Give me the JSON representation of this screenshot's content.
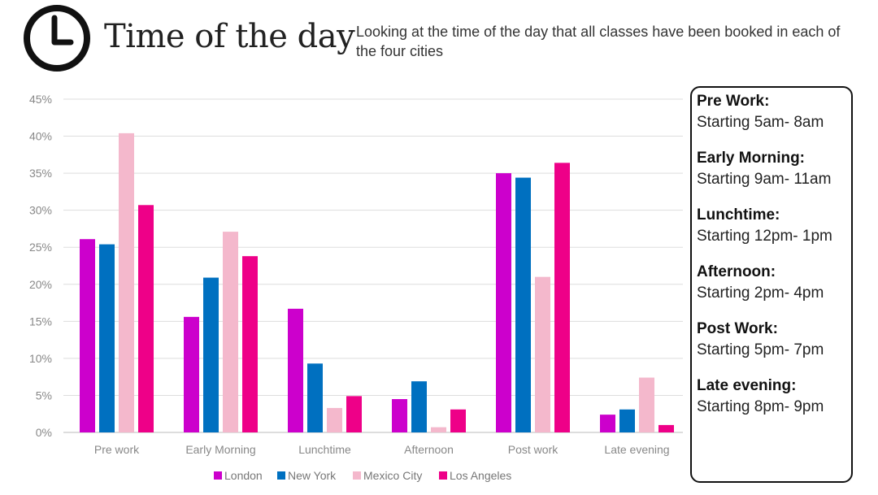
{
  "header": {
    "title": "Time of the day",
    "subtitle": "Looking at the time of the day that all classes have been booked in each of the four cities"
  },
  "chart_data": {
    "type": "bar",
    "categories": [
      "Pre work",
      "Early Morning",
      "Lunchtime",
      "Afternoon",
      "Post work",
      "Late evening"
    ],
    "series": [
      {
        "name": "London",
        "color": "#cc00cc",
        "values": [
          26.1,
          15.6,
          16.7,
          4.5,
          35.0,
          2.4
        ]
      },
      {
        "name": "New York",
        "color": "#0070c0",
        "values": [
          25.4,
          20.9,
          9.3,
          6.9,
          34.4,
          3.1
        ]
      },
      {
        "name": "Mexico City",
        "color": "#f4b8cc",
        "values": [
          40.4,
          27.1,
          3.3,
          0.7,
          21.0,
          7.4
        ]
      },
      {
        "name": "Los Angeles",
        "color": "#ee0088",
        "values": [
          30.7,
          23.8,
          4.9,
          3.1,
          36.4,
          1.0
        ]
      }
    ],
    "ylim": [
      0,
      45
    ],
    "yticks": [
      "0%",
      "5%",
      "10%",
      "15%",
      "20%",
      "25%",
      "30%",
      "35%",
      "40%",
      "45%"
    ],
    "grid": true,
    "legend": "bottom"
  },
  "sidebar": {
    "periods": [
      {
        "name": "Pre Work:",
        "time": "Starting 5am- 8am"
      },
      {
        "name": "Early Morning:",
        "time": "Starting 9am- 11am"
      },
      {
        "name": "Lunchtime:",
        "time": "Starting 12pm- 1pm"
      },
      {
        "name": "Afternoon:",
        "time": "Starting 2pm- 4pm"
      },
      {
        "name": "Post Work:",
        "time": "Starting 5pm- 7pm"
      },
      {
        "name": "Late evening:",
        "time": "Starting 8pm- 9pm"
      }
    ]
  },
  "icons": {
    "header": "clock-icon"
  }
}
